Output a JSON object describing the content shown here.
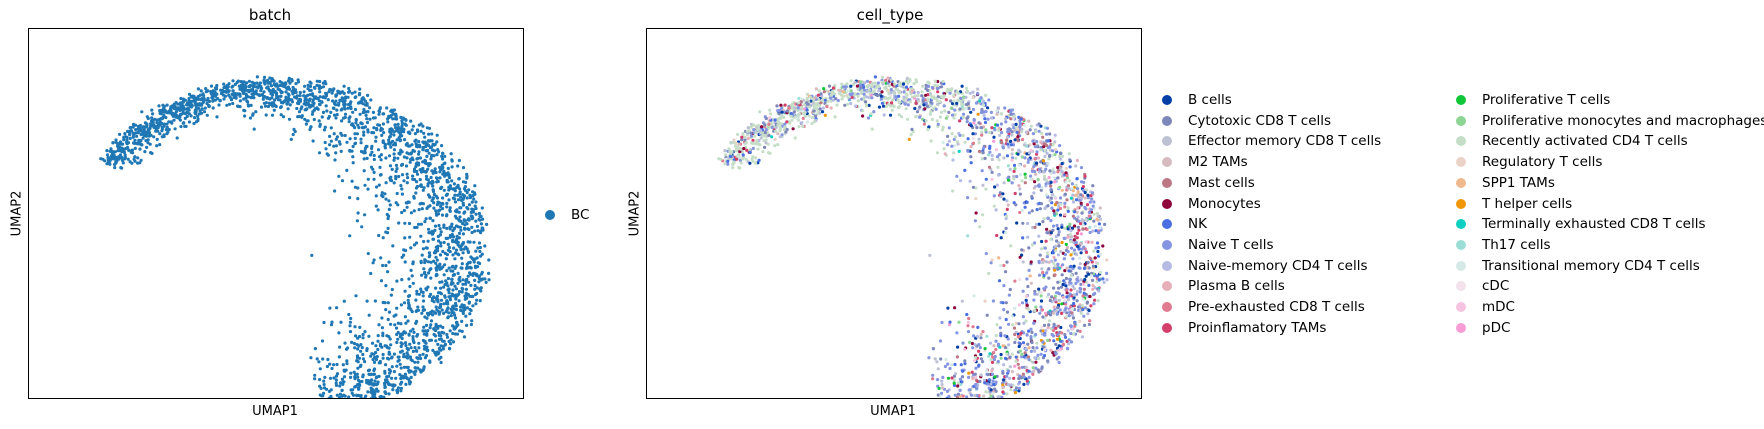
{
  "chart_data": [
    {
      "type": "scatter",
      "title": "batch",
      "xlabel": "UMAP1",
      "ylabel": "UMAP2",
      "grid": false,
      "legend_placement": "right",
      "series": [
        {
          "name": "BC",
          "color": "#1f77b4"
        }
      ]
    },
    {
      "type": "scatter",
      "title": "cell_type",
      "xlabel": "UMAP1",
      "ylabel": "UMAP2",
      "grid": false,
      "legend_placement": "right",
      "series": [
        {
          "name": "B cells",
          "color": "#023fa5"
        },
        {
          "name": "Cytotoxic CD8 T cells",
          "color": "#7d87b9"
        },
        {
          "name": "Effector memory CD8 T cells",
          "color": "#bec1d4"
        },
        {
          "name": "M2 TAMs",
          "color": "#d6bcc0"
        },
        {
          "name": "Mast cells",
          "color": "#bb7784"
        },
        {
          "name": "Monocytes",
          "color": "#8e063b"
        },
        {
          "name": "NK",
          "color": "#4a6fe3"
        },
        {
          "name": "Naive T cells",
          "color": "#8595e1"
        },
        {
          "name": "Naive-memory CD4 T cells",
          "color": "#b5bbe3"
        },
        {
          "name": "Plasma B cells",
          "color": "#e6afb9"
        },
        {
          "name": "Pre-exhausted CD8 T cells",
          "color": "#e07b91"
        },
        {
          "name": "Proinflamatory TAMs",
          "color": "#d33f6a"
        },
        {
          "name": "Proliferative T cells",
          "color": "#11c638"
        },
        {
          "name": "Proliferative monocytes and macrophages",
          "color": "#8dd593"
        },
        {
          "name": "Recently activated CD4 T cells",
          "color": "#c6dec7"
        },
        {
          "name": "Regulatory T cells",
          "color": "#ead3c6"
        },
        {
          "name": "SPP1 TAMs",
          "color": "#f0b98d"
        },
        {
          "name": "T helper cells",
          "color": "#ef9708"
        },
        {
          "name": "Terminally exhausted CD8 T cells",
          "color": "#0fcfc0"
        },
        {
          "name": "Th17 cells",
          "color": "#9cded6"
        },
        {
          "name": "Transitional memory CD4 T cells",
          "color": "#d5eae7"
        },
        {
          "name": "cDC",
          "color": "#f3e1eb"
        },
        {
          "name": "mDC",
          "color": "#f6c4e1"
        },
        {
          "name": "pDC",
          "color": "#f79cd4"
        }
      ]
    }
  ]
}
